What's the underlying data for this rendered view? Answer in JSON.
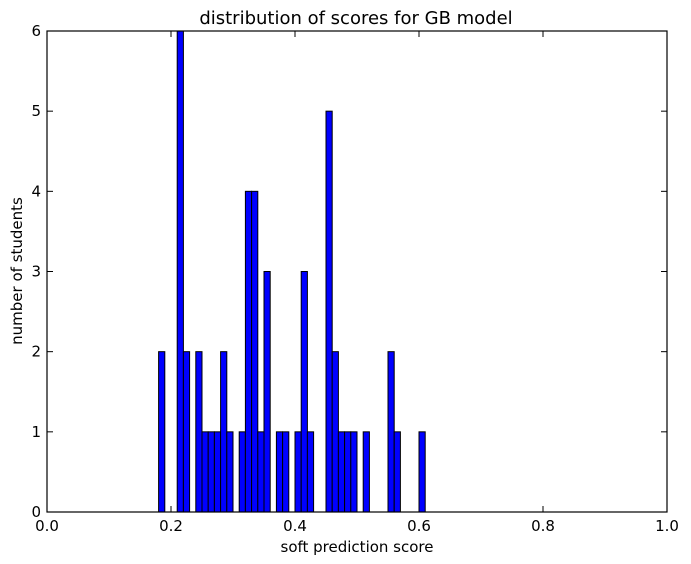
{
  "chart_data": {
    "type": "bar",
    "title": "distribution of scores for GB model",
    "xlabel": "soft prediction score",
    "ylabel": "number of students",
    "xlim": [
      0.0,
      1.0
    ],
    "ylim": [
      0,
      6
    ],
    "x_ticks": [
      "0.0",
      "0.2",
      "0.4",
      "0.6",
      "0.8",
      "1.0"
    ],
    "y_ticks": [
      "0",
      "1",
      "2",
      "3",
      "4",
      "5",
      "6"
    ],
    "bin_width": 0.01,
    "bar_color": "#0000ff",
    "edge_color": "#000000",
    "grid": false,
    "bins": [
      {
        "x": 0.18,
        "count": 2
      },
      {
        "x": 0.21,
        "count": 6
      },
      {
        "x": 0.22,
        "count": 2
      },
      {
        "x": 0.24,
        "count": 2
      },
      {
        "x": 0.25,
        "count": 1
      },
      {
        "x": 0.26,
        "count": 1
      },
      {
        "x": 0.27,
        "count": 1
      },
      {
        "x": 0.28,
        "count": 2
      },
      {
        "x": 0.29,
        "count": 1
      },
      {
        "x": 0.31,
        "count": 1
      },
      {
        "x": 0.32,
        "count": 4
      },
      {
        "x": 0.33,
        "count": 4
      },
      {
        "x": 0.34,
        "count": 1
      },
      {
        "x": 0.35,
        "count": 3
      },
      {
        "x": 0.37,
        "count": 1
      },
      {
        "x": 0.38,
        "count": 1
      },
      {
        "x": 0.4,
        "count": 1
      },
      {
        "x": 0.41,
        "count": 3
      },
      {
        "x": 0.42,
        "count": 1
      },
      {
        "x": 0.45,
        "count": 5
      },
      {
        "x": 0.46,
        "count": 2
      },
      {
        "x": 0.47,
        "count": 1
      },
      {
        "x": 0.48,
        "count": 1
      },
      {
        "x": 0.49,
        "count": 1
      },
      {
        "x": 0.51,
        "count": 1
      },
      {
        "x": 0.55,
        "count": 2
      },
      {
        "x": 0.56,
        "count": 1
      },
      {
        "x": 0.6,
        "count": 1
      }
    ]
  }
}
